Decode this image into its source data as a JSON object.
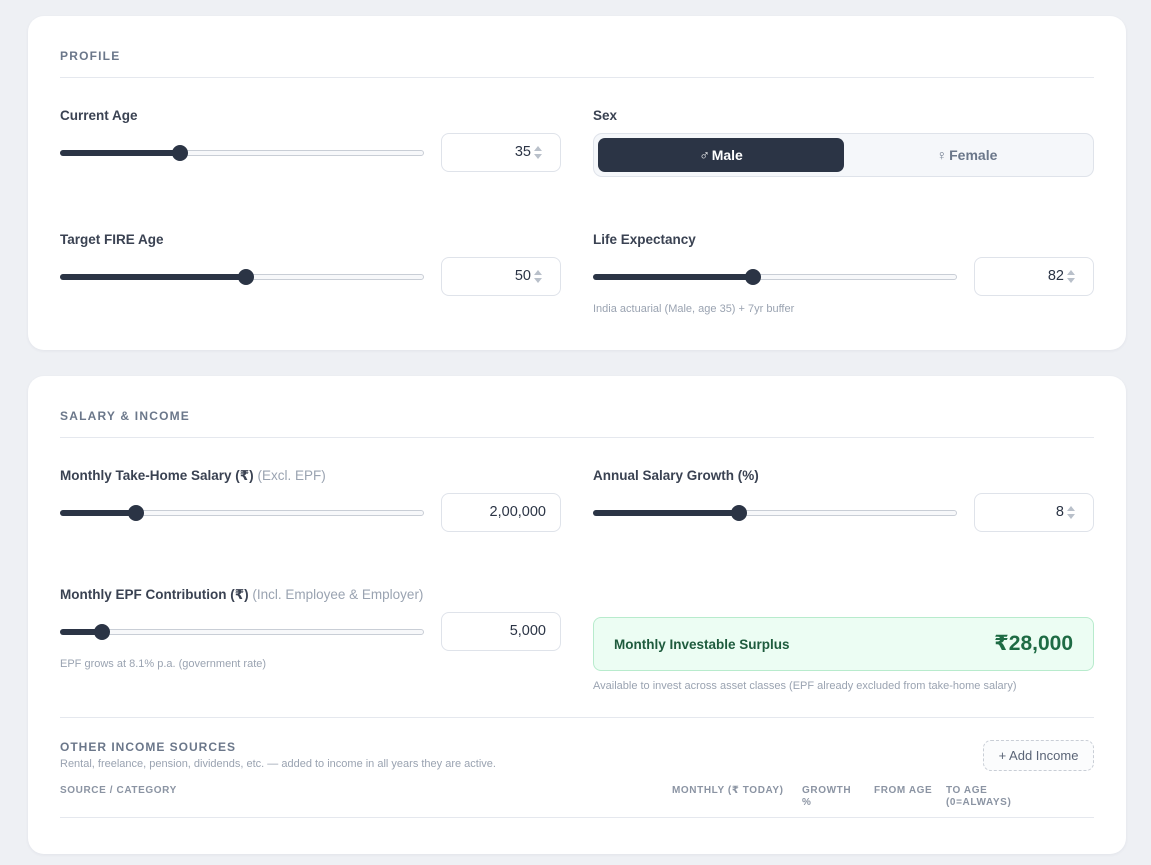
{
  "profile": {
    "title": "PROFILE",
    "current_age": {
      "label": "Current Age",
      "value": "35",
      "slider_fraction": 0.33
    },
    "sex": {
      "label": "Sex",
      "options": [
        {
          "symbol": "♂",
          "label": "Male",
          "selected": true
        },
        {
          "symbol": "♀",
          "label": "Female",
          "selected": false
        }
      ]
    },
    "fire_age": {
      "label": "Target FIRE Age",
      "value": "50",
      "slider_fraction": 0.51
    },
    "life_expectancy": {
      "label": "Life Expectancy",
      "value": "82",
      "slider_fraction": 0.44,
      "hint": "India actuarial (Male, age 35) + 7yr buffer"
    }
  },
  "salary": {
    "title": "SALARY & INCOME",
    "take_home": {
      "label": "Monthly Take-Home Salary (₹)",
      "note": "(Excl. EPF)",
      "value": "2,00,000",
      "slider_fraction": 0.21
    },
    "growth": {
      "label": "Annual Salary Growth (%)",
      "value": "8",
      "slider_fraction": 0.4
    },
    "epf": {
      "label": "Monthly EPF Contribution (₹)",
      "note": "(Incl. Employee & Employer)",
      "value": "5,000",
      "slider_fraction": 0.115,
      "hint": "EPF grows at 8.1% p.a. (government rate)"
    },
    "surplus": {
      "label": "Monthly Investable Surplus",
      "value": "₹28,000",
      "hint": "Available to invest across asset classes (EPF already excluded from take-home salary)"
    },
    "other_income": {
      "title": "OTHER INCOME SOURCES",
      "description": "Rental, freelance, pension, dividends, etc. — added to income in all years they are active.",
      "add_label": "+ Add Income",
      "columns": [
        "SOURCE / CATEGORY",
        "MONTHLY (₹ TODAY)",
        "GROWTH %",
        "FROM AGE",
        "TO AGE (0=ALWAYS)"
      ]
    }
  },
  "colors": {
    "accent": "#2b3445",
    "surplus_bg": "#ecfdf3",
    "surplus_text": "#1e6b44"
  }
}
